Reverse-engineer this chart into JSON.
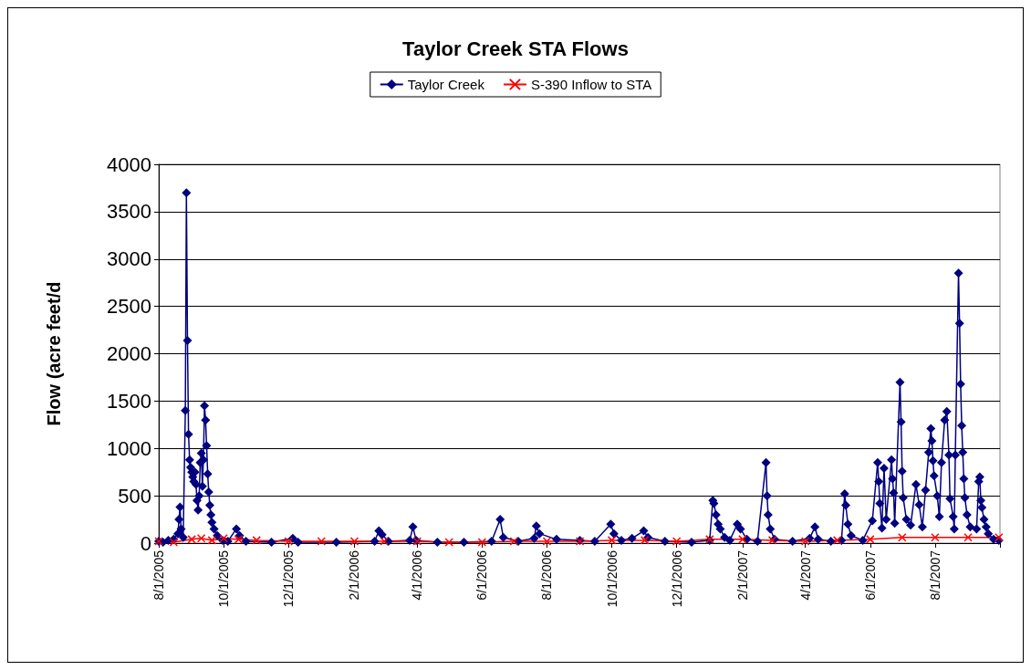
{
  "chart_data": {
    "type": "line",
    "title": "Taylor Creek STA Flows",
    "ylabel": "Flow (acre feet/d",
    "xlim": [
      "2005-08-01",
      "2007-10-01"
    ],
    "xticks": [
      {
        "value": "2005-08-01",
        "label": "8/1/2005"
      },
      {
        "value": "2005-10-01",
        "label": "10/1/2005"
      },
      {
        "value": "2005-12-01",
        "label": "12/1/2005"
      },
      {
        "value": "2006-02-01",
        "label": "2/1/2006"
      },
      {
        "value": "2006-04-01",
        "label": "4/1/2006"
      },
      {
        "value": "2006-06-01",
        "label": "6/1/2006"
      },
      {
        "value": "2006-08-01",
        "label": "8/1/2006"
      },
      {
        "value": "2006-10-01",
        "label": "10/1/2006"
      },
      {
        "value": "2006-12-01",
        "label": "12/1/2006"
      },
      {
        "value": "2007-02-01",
        "label": "2/1/2007"
      },
      {
        "value": "2007-04-01",
        "label": "4/1/2007"
      },
      {
        "value": "2007-06-01",
        "label": "6/1/2007"
      },
      {
        "value": "2007-08-01",
        "label": "8/1/2007"
      },
      {
        "value": "2007-10-01",
        "label": null
      }
    ],
    "ylim": [
      0,
      4000
    ],
    "yticks": [
      0,
      500,
      1000,
      1500,
      2000,
      2500,
      3000,
      3500,
      4000
    ],
    "grid": "y",
    "legend": "top",
    "series": [
      {
        "name": "Taylor Creek",
        "color": "#000080",
        "marker": "diamond",
        "x": [
          "2005-08-01",
          "2005-08-05",
          "2005-08-10",
          "2005-08-15",
          "2005-08-19",
          "2005-08-20",
          "2005-08-21",
          "2005-08-22",
          "2005-08-24",
          "2005-08-26",
          "2005-08-27",
          "2005-08-28",
          "2005-08-29",
          "2005-08-30",
          "2005-08-31",
          "2005-09-01",
          "2005-09-02",
          "2005-09-03",
          "2005-09-04",
          "2005-09-05",
          "2005-09-06",
          "2005-09-07",
          "2005-09-08",
          "2005-09-09",
          "2005-09-10",
          "2005-09-11",
          "2005-09-12",
          "2005-09-13",
          "2005-09-14",
          "2005-09-15",
          "2005-09-16",
          "2005-09-17",
          "2005-09-18",
          "2005-09-19",
          "2005-09-20",
          "2005-09-22",
          "2005-09-25",
          "2005-09-30",
          "2005-10-05",
          "2005-10-13",
          "2005-10-16",
          "2005-10-22",
          "2005-11-15",
          "2005-12-05",
          "2005-12-10",
          "2006-01-15",
          "2006-02-20",
          "2006-02-24",
          "2006-02-27",
          "2006-03-05",
          "2006-03-25",
          "2006-03-28",
          "2006-03-31",
          "2006-04-20",
          "2006-05-15",
          "2006-06-10",
          "2006-06-18",
          "2006-06-21",
          "2006-07-05",
          "2006-07-20",
          "2006-07-22",
          "2006-07-25",
          "2006-08-10",
          "2006-09-01",
          "2006-09-15",
          "2006-09-30",
          "2006-10-03",
          "2006-10-10",
          "2006-10-20",
          "2006-10-31",
          "2006-11-04",
          "2006-11-20",
          "2006-12-15",
          "2007-01-01",
          "2007-01-04",
          "2007-01-05",
          "2007-01-07",
          "2007-01-09",
          "2007-01-11",
          "2007-01-15",
          "2007-01-20",
          "2007-01-27",
          "2007-01-30",
          "2007-02-05",
          "2007-02-15",
          "2007-02-23",
          "2007-02-24",
          "2007-02-25",
          "2007-02-27",
          "2007-03-03",
          "2007-03-20",
          "2007-04-05",
          "2007-04-10",
          "2007-04-13",
          "2007-04-25",
          "2007-05-05",
          "2007-05-08",
          "2007-05-09",
          "2007-05-11",
          "2007-05-14",
          "2007-05-25",
          "2007-06-03",
          "2007-06-08",
          "2007-06-09",
          "2007-06-10",
          "2007-06-12",
          "2007-06-14",
          "2007-06-16",
          "2007-06-21",
          "2007-06-22",
          "2007-06-23",
          "2007-06-24",
          "2007-06-29",
          "2007-06-30",
          "2007-07-01",
          "2007-07-02",
          "2007-07-05",
          "2007-07-09",
          "2007-07-14",
          "2007-07-17",
          "2007-07-20",
          "2007-07-23",
          "2007-07-26",
          "2007-07-28",
          "2007-07-29",
          "2007-07-30",
          "2007-07-31",
          "2007-08-03",
          "2007-08-05",
          "2007-08-07",
          "2007-08-10",
          "2007-08-12",
          "2007-08-14",
          "2007-08-15",
          "2007-08-18",
          "2007-08-19",
          "2007-08-20",
          "2007-08-23",
          "2007-08-24",
          "2007-08-25",
          "2007-08-26",
          "2007-08-27",
          "2007-08-28",
          "2007-08-29",
          "2007-08-31",
          "2007-09-03",
          "2007-09-09",
          "2007-09-11",
          "2007-09-12",
          "2007-09-13",
          "2007-09-14",
          "2007-09-16",
          "2007-09-18",
          "2007-09-20",
          "2007-09-25",
          "2007-09-30"
        ],
        "values": [
          20,
          10,
          30,
          40,
          100,
          250,
          380,
          150,
          60,
          1400,
          3700,
          2140,
          1150,
          880,
          800,
          750,
          700,
          650,
          750,
          620,
          450,
          350,
          500,
          850,
          950,
          600,
          880,
          1450,
          1300,
          1030,
          730,
          540,
          400,
          300,
          220,
          150,
          80,
          30,
          20,
          150,
          80,
          20,
          10,
          50,
          10,
          10,
          20,
          130,
          90,
          20,
          30,
          170,
          30,
          10,
          10,
          20,
          250,
          60,
          20,
          50,
          180,
          100,
          40,
          30,
          20,
          200,
          100,
          30,
          50,
          130,
          60,
          20,
          10,
          30,
          450,
          420,
          300,
          200,
          150,
          60,
          30,
          200,
          150,
          40,
          20,
          850,
          500,
          300,
          150,
          40,
          20,
          50,
          170,
          40,
          20,
          30,
          520,
          400,
          200,
          80,
          30,
          237,
          850,
          650,
          420,
          160,
          790,
          250,
          880,
          680,
          530,
          210,
          1700,
          1280,
          760,
          480,
          250,
          190,
          620,
          405,
          170,
          560,
          960,
          1210,
          1080,
          870,
          710,
          500,
          280,
          850,
          1300,
          1390,
          930,
          470,
          280,
          150,
          930,
          2850,
          2320,
          1680,
          1240,
          960,
          680,
          480,
          300,
          170,
          150,
          650,
          700,
          450,
          375,
          250,
          170,
          100,
          40,
          30
        ]
      },
      {
        "name": "S-390 Inflow to STA",
        "color": "#ff0000",
        "marker": "cross",
        "x": [
          "2005-08-01",
          "2005-08-15",
          "2005-09-01",
          "2005-09-10",
          "2005-09-20",
          "2005-10-01",
          "2005-10-15",
          "2005-11-01",
          "2005-12-01",
          "2006-01-01",
          "2006-02-01",
          "2006-03-01",
          "2006-04-01",
          "2006-05-01",
          "2006-06-01",
          "2006-07-01",
          "2006-08-01",
          "2006-09-01",
          "2006-10-01",
          "2006-11-01",
          "2006-12-01",
          "2007-01-01",
          "2007-02-01",
          "2007-03-01",
          "2007-04-01",
          "2007-05-01",
          "2007-06-01",
          "2007-07-01",
          "2007-08-01",
          "2007-09-01",
          "2007-09-30"
        ],
        "values": [
          20,
          10,
          40,
          50,
          30,
          50,
          40,
          30,
          20,
          20,
          20,
          20,
          20,
          10,
          10,
          20,
          20,
          20,
          30,
          30,
          20,
          40,
          40,
          30,
          20,
          30,
          40,
          60,
          60,
          60,
          60
        ]
      }
    ]
  }
}
